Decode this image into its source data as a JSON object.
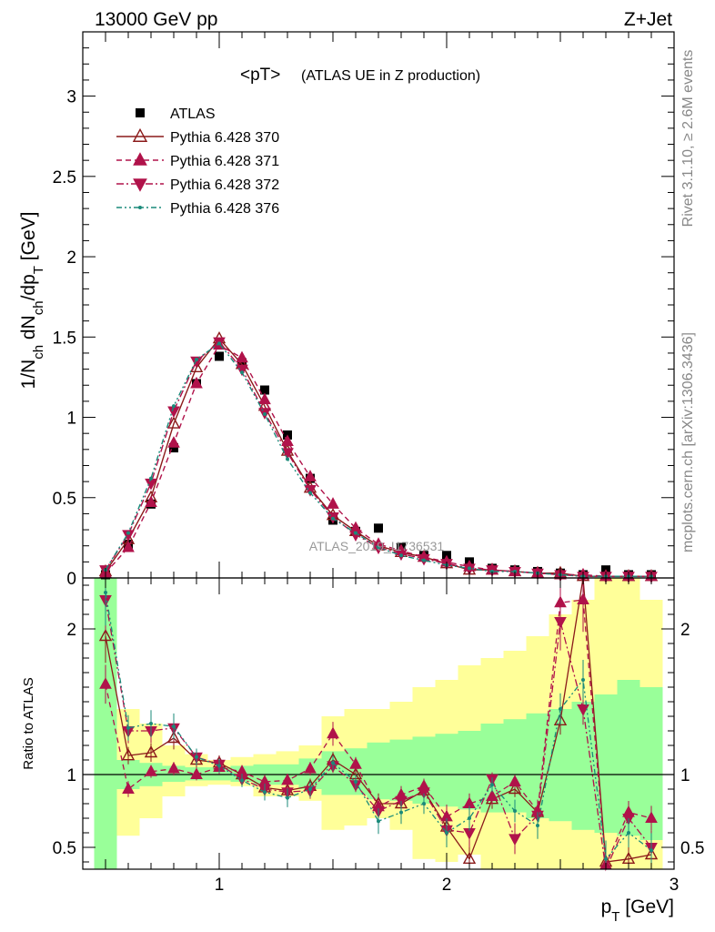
{
  "header": {
    "left": "13000 GeV pp",
    "right": "Z+Jet",
    "side_rivet": "Rivet 3.1.10, ≥ 2.6M events",
    "side_mcplots": "mcplots.cern.ch [arXiv:1306.3436]"
  },
  "chart_data": [
    {
      "type": "line",
      "panel": "main",
      "title": "<pT>",
      "subtitle": "(ATLAS UE in Z production)",
      "watermark": "ATLAS_2019_I1736531",
      "ylabel": "1/N_ch dN_ch/dp_T [GeV]",
      "xlim": [
        0.4,
        3.0
      ],
      "ylim": [
        0,
        3.4
      ],
      "y_ticks": [
        0,
        0.5,
        1,
        1.5,
        2,
        2.5,
        3
      ],
      "y_tick_labels": [
        "0",
        "0.5",
        "1",
        "1.5",
        "2",
        "2.5",
        "3"
      ],
      "x": [
        0.5,
        0.6,
        0.7,
        0.8,
        0.9,
        1.0,
        1.1,
        1.2,
        1.3,
        1.4,
        1.5,
        1.6,
        1.7,
        1.8,
        1.9,
        2.0,
        2.1,
        2.2,
        2.3,
        2.4,
        2.5,
        2.6,
        2.7,
        2.8,
        2.9
      ],
      "legend_position": "top-left",
      "series": [
        {
          "name": "ATLAS",
          "style": "data",
          "color": "#000000",
          "marker": "square",
          "values": [
            0.02,
            0.21,
            0.46,
            0.81,
            1.21,
            1.38,
            1.34,
            1.17,
            0.89,
            0.62,
            0.36,
            0.29,
            0.31,
            0.19,
            0.14,
            0.14,
            0.1,
            0.06,
            0.05,
            0.04,
            0.03,
            0.02,
            0.05,
            0.02,
            0.02
          ]
        },
        {
          "name": "Pythia 6.428 370",
          "style": "solid",
          "color": "#8b1a1a",
          "marker": "triangle-up-open",
          "values": [
            0.04,
            0.24,
            0.5,
            0.96,
            1.31,
            1.49,
            1.33,
            1.07,
            0.79,
            0.56,
            0.39,
            0.29,
            0.2,
            0.16,
            0.13,
            0.09,
            0.05,
            0.05,
            0.04,
            0.03,
            0.03,
            0.01,
            0.01,
            0.01,
            0.01
          ]
        },
        {
          "name": "Pythia 6.428 371",
          "style": "dashed",
          "color": "#b0124a",
          "marker": "triangle-up",
          "values": [
            0.03,
            0.19,
            0.47,
            0.84,
            1.21,
            1.45,
            1.37,
            1.11,
            0.85,
            0.63,
            0.46,
            0.31,
            0.21,
            0.17,
            0.13,
            0.1,
            0.07,
            0.05,
            0.04,
            0.03,
            0.02,
            0.02,
            0.01,
            0.01,
            0.01
          ]
        },
        {
          "name": "Pythia 6.428 372",
          "style": "dashdot",
          "color": "#b0124a",
          "marker": "triangle-down",
          "values": [
            0.05,
            0.27,
            0.59,
            1.04,
            1.35,
            1.47,
            1.3,
            1.03,
            0.78,
            0.55,
            0.38,
            0.27,
            0.19,
            0.15,
            0.12,
            0.09,
            0.06,
            0.05,
            0.04,
            0.03,
            0.02,
            0.01,
            0.01,
            0.01,
            0.01
          ]
        },
        {
          "name": "Pythia 6.428 376",
          "style": "dashdotdot",
          "color": "#1a8a7a",
          "marker": "dot",
          "values": [
            0.05,
            0.28,
            0.62,
            1.07,
            1.36,
            1.46,
            1.28,
            1.02,
            0.74,
            0.53,
            0.37,
            0.28,
            0.19,
            0.14,
            0.11,
            0.08,
            0.06,
            0.04,
            0.04,
            0.03,
            0.02,
            0.01,
            0.01,
            0.01,
            0.01
          ]
        }
      ]
    },
    {
      "type": "line",
      "panel": "ratio",
      "ylabel": "Ratio to ATLAS",
      "xlabel": "p_T [GeV]",
      "xlim": [
        0.4,
        3.0
      ],
      "ylim": [
        0.35,
        2.35
      ],
      "x_ticks": [
        1,
        2,
        3
      ],
      "x_tick_labels": [
        "1",
        "2",
        "3"
      ],
      "y_ticks": [
        0.5,
        1,
        2
      ],
      "y_tick_labels": [
        "0.5",
        "1",
        "2"
      ],
      "reference_line": 1,
      "x": [
        0.5,
        0.6,
        0.7,
        0.8,
        0.9,
        1.0,
        1.1,
        1.2,
        1.3,
        1.4,
        1.5,
        1.6,
        1.7,
        1.8,
        1.9,
        2.0,
        2.1,
        2.2,
        2.3,
        2.4,
        2.5,
        2.6,
        2.7,
        2.8,
        2.9
      ],
      "uncertainty_bands": {
        "stat_color": "#99ff99",
        "total_color": "#ffff99",
        "stat_lo": [
          0.35,
          0.9,
          0.92,
          0.95,
          0.96,
          0.96,
          0.95,
          0.93,
          0.93,
          0.9,
          0.86,
          0.86,
          0.83,
          0.82,
          0.8,
          0.78,
          0.76,
          0.74,
          0.74,
          0.7,
          0.68,
          0.62,
          0.6,
          0.58,
          0.55
        ],
        "stat_hi": [
          2.35,
          1.1,
          1.08,
          1.06,
          1.05,
          1.05,
          1.06,
          1.07,
          1.07,
          1.11,
          1.16,
          1.18,
          1.22,
          1.24,
          1.26,
          1.28,
          1.3,
          1.35,
          1.38,
          1.42,
          1.45,
          1.5,
          1.55,
          1.65,
          1.6
        ],
        "total_lo": [
          0.35,
          0.58,
          0.7,
          0.85,
          0.92,
          0.93,
          0.92,
          0.85,
          0.85,
          0.82,
          0.62,
          0.65,
          0.7,
          0.62,
          0.42,
          0.4,
          0.45,
          0.35,
          0.35,
          0.35,
          0.35,
          0.35,
          0.35,
          0.35,
          0.35
        ],
        "total_hi": [
          2.35,
          1.45,
          1.35,
          1.2,
          1.14,
          1.1,
          1.12,
          1.14,
          1.16,
          1.2,
          1.4,
          1.45,
          1.45,
          1.5,
          1.6,
          1.65,
          1.75,
          1.8,
          1.85,
          1.95,
          2.1,
          2.2,
          2.35,
          2.35,
          2.2
        ]
      },
      "series": [
        {
          "name": "Pythia 6.428 370",
          "color": "#8b1a1a",
          "style": "solid",
          "marker": "triangle-up-open",
          "values": [
            1.95,
            1.13,
            1.15,
            1.25,
            1.1,
            1.08,
            1.0,
            0.91,
            0.89,
            0.92,
            1.1,
            1.0,
            0.8,
            0.8,
            0.89,
            0.64,
            0.42,
            0.83,
            0.9,
            0.74,
            1.37,
            2.45,
            0.4,
            0.42,
            0.45
          ]
        },
        {
          "name": "Pythia 6.428 371",
          "color": "#b0124a",
          "style": "dashed",
          "marker": "triangle-up",
          "values": [
            1.62,
            0.9,
            1.02,
            1.04,
            1.0,
            1.05,
            1.02,
            0.95,
            0.96,
            1.04,
            1.28,
            1.07,
            0.78,
            0.86,
            0.92,
            0.71,
            0.8,
            0.85,
            0.95,
            0.75,
            2.18,
            2.2,
            0.38,
            0.74,
            0.7
          ]
        },
        {
          "name": "Pythia 6.428 372",
          "color": "#b0124a",
          "style": "dashdot",
          "marker": "triangle-down",
          "values": [
            2.2,
            1.3,
            1.3,
            1.32,
            1.12,
            1.07,
            0.97,
            0.9,
            0.88,
            0.89,
            1.06,
            0.93,
            0.75,
            0.82,
            0.88,
            0.62,
            0.6,
            0.97,
            0.56,
            0.72,
            2.05,
            1.45,
            0.33,
            0.7,
            0.5
          ]
        },
        {
          "name": "Pythia 6.428 376",
          "color": "#1a8a7a",
          "style": "dashdotdot",
          "marker": "dot",
          "values": [
            2.25,
            1.32,
            1.35,
            1.33,
            1.12,
            1.06,
            0.96,
            0.88,
            0.84,
            0.9,
            1.08,
            0.95,
            0.68,
            0.74,
            0.8,
            0.6,
            0.7,
            0.93,
            0.75,
            0.65,
            1.45,
            1.65,
            0.42,
            0.6,
            0.48
          ]
        }
      ]
    }
  ]
}
